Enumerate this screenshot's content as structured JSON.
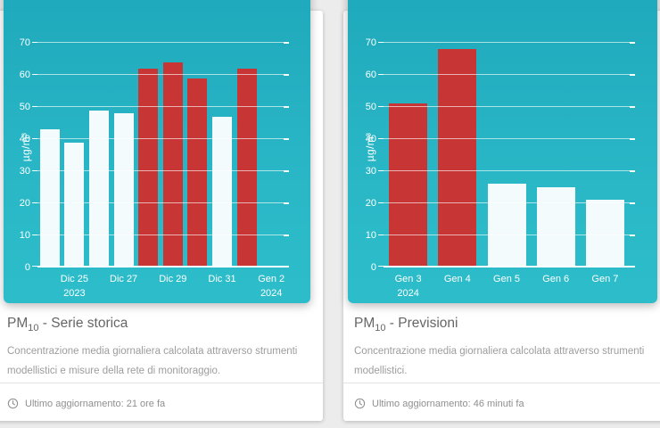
{
  "colors": {
    "panel_teal_top": "#1fa9bc",
    "panel_teal_bottom": "#2dbdca",
    "bar_red": "#c73634",
    "bar_white": "#f3fbfc",
    "page_background": "#ececed"
  },
  "cards": [
    {
      "title": {
        "prefix": "PM",
        "sub": "10",
        "rest": " - Serie storica"
      },
      "description": "Concentrazione media giornaliera calcolata attraverso strumenti modellistici e misure della rete di monitoraggio.",
      "last_update": "Ultimo aggiornamento: 21 ore fa"
    },
    {
      "title": {
        "prefix": "PM",
        "sub": "10",
        "rest": " - Previsioni"
      },
      "description": "Concentrazione media giornaliera calcolata attraverso strumenti modellistici.",
      "last_update": "Ultimo aggiornamento: 46 minuti fa"
    }
  ],
  "chart_data": [
    {
      "type": "bar",
      "title": "PM10 - Serie storica",
      "ylabel": "µg/m³",
      "ylim": [
        0,
        70
      ],
      "yticks": [
        0,
        10,
        20,
        30,
        40,
        50,
        60,
        70
      ],
      "grid": true,
      "legend": false,
      "categories": [
        "",
        "Dic 25|2023",
        "",
        "Dic 27",
        "",
        "Dic 29",
        "",
        "Dic 31",
        "",
        "Gen 2|2024"
      ],
      "values": [
        43,
        39,
        49,
        48,
        62,
        64,
        59,
        47,
        62,
        null
      ],
      "bar_colors": [
        "white",
        "white",
        "white",
        "white",
        "red",
        "red",
        "red",
        "white",
        "red",
        null
      ]
    },
    {
      "type": "bar",
      "title": "PM10 - Previsioni",
      "ylabel": "µg/m³",
      "ylim": [
        0,
        70
      ],
      "yticks": [
        0,
        10,
        20,
        30,
        40,
        50,
        60,
        70
      ],
      "grid": true,
      "legend": false,
      "categories": [
        "Gen 3|2024",
        "Gen 4",
        "Gen 5",
        "Gen 6",
        "Gen 7"
      ],
      "values": [
        51,
        68,
        26,
        25,
        21
      ],
      "bar_colors": [
        "red",
        "red",
        "white",
        "white",
        "white"
      ]
    }
  ]
}
